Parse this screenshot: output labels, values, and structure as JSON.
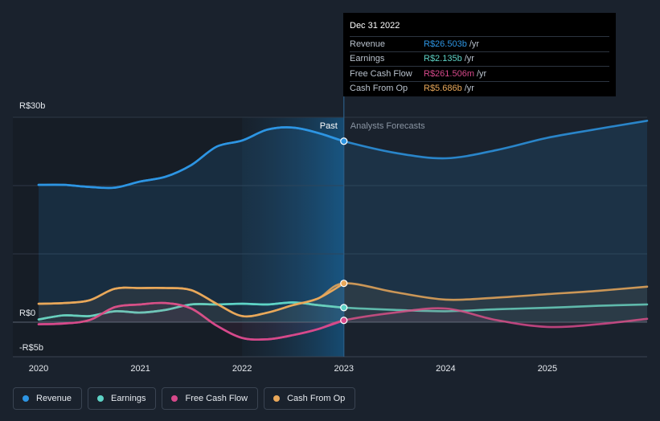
{
  "chart_data": {
    "type": "line",
    "title": "",
    "currency_prefix": "R$",
    "x_range": [
      2020.0,
      2025.98
    ],
    "y_range": [
      -5,
      30
    ],
    "x_ticks": [
      {
        "value": 2020,
        "label": "2020"
      },
      {
        "value": 2021,
        "label": "2021"
      },
      {
        "value": 2022,
        "label": "2022"
      },
      {
        "value": 2023,
        "label": "2023"
      },
      {
        "value": 2024,
        "label": "2024"
      },
      {
        "value": 2025,
        "label": "2025"
      }
    ],
    "y_labels": [
      {
        "value": 30,
        "label": "R$30b"
      },
      {
        "value": 0,
        "label": "R$0"
      },
      {
        "value": -5,
        "label": "-R$5b"
      }
    ],
    "gridlines": [
      30,
      20,
      10,
      0
    ],
    "divider_x": 2023.0,
    "highlight_start": 2022.0,
    "past_label": "Past",
    "forecast_label": "Analysts Forecasts",
    "series": [
      {
        "name": "Revenue",
        "color": "#2d95e3",
        "fill": true,
        "past": [
          [
            2020.0,
            20.1
          ],
          [
            2020.25,
            20.1
          ],
          [
            2020.5,
            19.8
          ],
          [
            2020.75,
            19.7
          ],
          [
            2021.0,
            20.6
          ],
          [
            2021.25,
            21.3
          ],
          [
            2021.5,
            23.0
          ],
          [
            2021.75,
            25.7
          ],
          [
            2022.0,
            26.6
          ],
          [
            2022.25,
            28.2
          ],
          [
            2022.5,
            28.5
          ],
          [
            2022.75,
            27.7
          ],
          [
            2023.0,
            26.5
          ]
        ],
        "forecast": [
          [
            2023.0,
            26.5
          ],
          [
            2023.5,
            24.8
          ],
          [
            2024.0,
            24.0
          ],
          [
            2024.5,
            25.2
          ],
          [
            2025.0,
            27.0
          ],
          [
            2025.5,
            28.3
          ],
          [
            2025.98,
            29.5
          ]
        ]
      },
      {
        "name": "Earnings",
        "color": "#5ed3c6",
        "fill": false,
        "past": [
          [
            2020.0,
            0.4
          ],
          [
            2020.25,
            1.0
          ],
          [
            2020.5,
            0.9
          ],
          [
            2020.75,
            1.6
          ],
          [
            2021.0,
            1.4
          ],
          [
            2021.25,
            1.8
          ],
          [
            2021.5,
            2.6
          ],
          [
            2021.75,
            2.6
          ],
          [
            2022.0,
            2.7
          ],
          [
            2022.25,
            2.6
          ],
          [
            2022.5,
            2.9
          ],
          [
            2022.75,
            2.5
          ],
          [
            2023.0,
            2.135
          ]
        ],
        "forecast": [
          [
            2023.0,
            2.135
          ],
          [
            2023.5,
            1.8
          ],
          [
            2024.0,
            1.6
          ],
          [
            2024.5,
            1.9
          ],
          [
            2025.0,
            2.1
          ],
          [
            2025.5,
            2.4
          ],
          [
            2025.98,
            2.6
          ]
        ]
      },
      {
        "name": "Free Cash Flow",
        "color": "#d6498b",
        "fill": true,
        "past": [
          [
            2020.0,
            -0.3
          ],
          [
            2020.25,
            -0.2
          ],
          [
            2020.5,
            0.3
          ],
          [
            2020.75,
            2.2
          ],
          [
            2021.0,
            2.6
          ],
          [
            2021.25,
            2.8
          ],
          [
            2021.5,
            2.0
          ],
          [
            2021.75,
            -0.5
          ],
          [
            2022.0,
            -2.3
          ],
          [
            2022.25,
            -2.5
          ],
          [
            2022.5,
            -1.9
          ],
          [
            2022.75,
            -1.0
          ],
          [
            2023.0,
            0.262
          ]
        ],
        "forecast": [
          [
            2023.0,
            0.262
          ],
          [
            2023.5,
            1.4
          ],
          [
            2024.0,
            2.0
          ],
          [
            2024.5,
            0.3
          ],
          [
            2025.0,
            -0.7
          ],
          [
            2025.5,
            -0.3
          ],
          [
            2025.98,
            0.5
          ]
        ]
      },
      {
        "name": "Cash From Op",
        "color": "#e9a85a",
        "fill": true,
        "past": [
          [
            2020.0,
            2.7
          ],
          [
            2020.25,
            2.8
          ],
          [
            2020.5,
            3.2
          ],
          [
            2020.75,
            4.9
          ],
          [
            2021.0,
            5.0
          ],
          [
            2021.25,
            5.0
          ],
          [
            2021.5,
            4.7
          ],
          [
            2021.75,
            2.7
          ],
          [
            2022.0,
            0.9
          ],
          [
            2022.25,
            1.4
          ],
          [
            2022.5,
            2.5
          ],
          [
            2022.75,
            3.5
          ],
          [
            2023.0,
            5.686
          ]
        ],
        "forecast": [
          [
            2023.0,
            5.686
          ],
          [
            2023.5,
            4.4
          ],
          [
            2024.0,
            3.3
          ],
          [
            2024.5,
            3.6
          ],
          [
            2025.0,
            4.1
          ],
          [
            2025.5,
            4.6
          ],
          [
            2025.98,
            5.2
          ]
        ]
      }
    ]
  },
  "tooltip": {
    "date": "Dec 31 2022",
    "rows": [
      {
        "label": "Revenue",
        "value": "R$26.503b",
        "unit": "/yr",
        "color": "#2d95e3"
      },
      {
        "label": "Earnings",
        "value": "R$2.135b",
        "unit": "/yr",
        "color": "#5ed3c6"
      },
      {
        "label": "Free Cash Flow",
        "value": "R$261.506m",
        "unit": "/yr",
        "color": "#d6498b"
      },
      {
        "label": "Cash From Op",
        "value": "R$5.686b",
        "unit": "/yr",
        "color": "#e9a85a"
      }
    ]
  },
  "legend": [
    {
      "label": "Revenue",
      "color": "#2d95e3",
      "icon": "dot-icon"
    },
    {
      "label": "Earnings",
      "color": "#5ed3c6",
      "icon": "dot-icon"
    },
    {
      "label": "Free Cash Flow",
      "color": "#d6498b",
      "icon": "dot-icon"
    },
    {
      "label": "Cash From Op",
      "color": "#e9a85a",
      "icon": "dot-icon"
    }
  ]
}
